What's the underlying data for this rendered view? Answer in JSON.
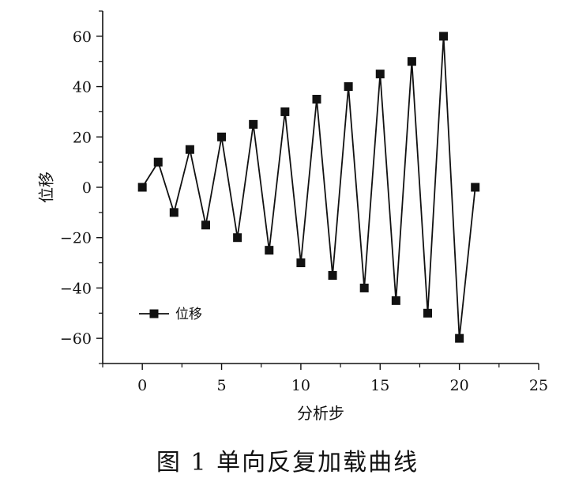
{
  "chart_data": {
    "type": "line",
    "xlabel": "分析步",
    "ylabel": "位移",
    "xlim": [
      -2.5,
      25
    ],
    "ylim": [
      -70,
      70
    ],
    "xticks": [
      0,
      5,
      10,
      15,
      20,
      25
    ],
    "yticks": [
      -60,
      -40,
      -20,
      0,
      20,
      40,
      60
    ],
    "grid": false,
    "legend_position": "bottom-left",
    "series": [
      {
        "name": "位移",
        "marker": "square",
        "color": "#111111",
        "x": [
          0,
          1,
          2,
          3,
          4,
          5,
          6,
          7,
          8,
          9,
          10,
          11,
          12,
          13,
          14,
          15,
          16,
          17,
          18,
          19,
          20,
          21
        ],
        "y": [
          0,
          10,
          -10,
          15,
          -15,
          20,
          -20,
          25,
          -25,
          30,
          -30,
          35,
          -35,
          40,
          -40,
          45,
          -45,
          50,
          -50,
          60,
          -60,
          0
        ]
      }
    ]
  },
  "caption": "图 1    单向反复加载曲线"
}
